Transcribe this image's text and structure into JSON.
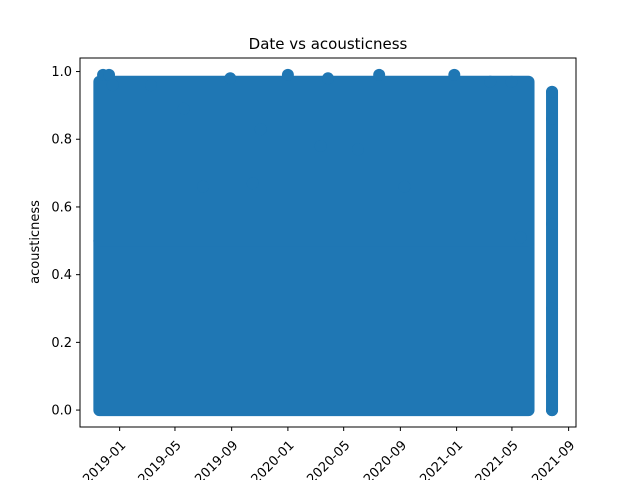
{
  "chart_data": {
    "type": "scatter",
    "title": "Date vs acousticness",
    "xlabel": "",
    "ylabel": "acousticness",
    "x_type": "date",
    "xlim": [
      "2018-10-07",
      "2021-09-17"
    ],
    "ylim": [
      -0.05,
      1.04
    ],
    "x_ticks": [
      "2019-01",
      "2019-05",
      "2019-09",
      "2020-01",
      "2020-05",
      "2020-09",
      "2021-01",
      "2021-05",
      "2021-09"
    ],
    "y_ticks": [
      "0.0",
      "0.2",
      "0.4",
      "0.6",
      "0.8",
      "1.0"
    ],
    "grid": false,
    "legend": "none",
    "colors": {
      "marker": "#1f77b4"
    },
    "series": [
      {
        "marker": "circle",
        "points": [
          {
            "x": "2018-11-26",
            "y": 0.99
          },
          {
            "x": "2018-12-09",
            "y": 0.99
          },
          {
            "x": "2018-12-17",
            "y": 0.96
          },
          {
            "x": "2019-03-10",
            "y": 0.96
          },
          {
            "x": "2019-05-20",
            "y": 0.89
          },
          {
            "x": "2019-07-01",
            "y": 0.66
          },
          {
            "x": "2019-08-29",
            "y": 0.98
          },
          {
            "x": "2019-10-17",
            "y": 0.67
          },
          {
            "x": "2019-11-03",
            "y": 0.83
          },
          {
            "x": "2020-01-01",
            "y": 0.99
          },
          {
            "x": "2020-03-12",
            "y": 0.78
          },
          {
            "x": "2020-03-28",
            "y": 0.98
          },
          {
            "x": "2020-06-01",
            "y": 0.77
          },
          {
            "x": "2020-07-17",
            "y": 0.99
          },
          {
            "x": "2020-09-10",
            "y": 0.66
          },
          {
            "x": "2020-12-27",
            "y": 0.99
          },
          {
            "x": "2021-03-15",
            "y": 0.97
          },
          {
            "x": "2021-04-30",
            "y": 0.97
          },
          {
            "x": "2021-05-20",
            "y": 0.51
          },
          {
            "x": "2021-07-27",
            "y": 0.94
          },
          {
            "x": "2021-07-27",
            "y": 0.86
          },
          {
            "x": "2021-07-27",
            "y": 0.74
          },
          {
            "x": "2021-07-27",
            "y": 0.55
          },
          {
            "x": "2021-07-27",
            "y": 0.3
          },
          {
            "x": "2021-07-27",
            "y": 0.1
          },
          {
            "x": "2021-07-27",
            "y": 0.0
          }
        ],
        "dense_regions": [
          {
            "x_from": "2018-11-18",
            "x_to": "2021-06-06",
            "y_from": 0.0,
            "y_to": 0.5
          },
          {
            "x_from": "2018-11-18",
            "x_to": "2021-06-06",
            "y_from": 0.5,
            "y_to": 0.97
          },
          {
            "x_from": "2021-07-27",
            "x_to": "2021-07-27",
            "y_from": 0.0,
            "y_to": 0.94
          }
        ]
      }
    ]
  }
}
